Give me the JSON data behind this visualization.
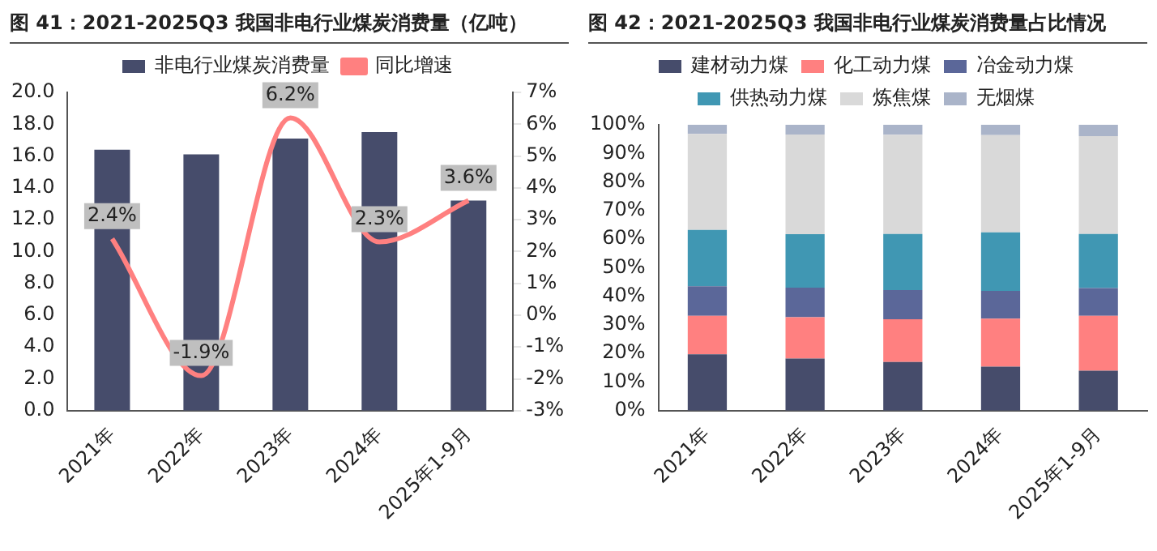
{
  "chart_data": [
    {
      "type": "bar",
      "title": "图 41：2021-2025Q3 我国非电行业煤炭消费量（亿吨）",
      "categories": [
        "2021年",
        "2022年",
        "2023年",
        "2024年",
        "2025年1-9月"
      ],
      "series": [
        {
          "name": "非电行业煤炭消费量",
          "type": "bar",
          "color": "#464c6b",
          "values": [
            16.4,
            16.1,
            17.1,
            17.5,
            13.2
          ]
        },
        {
          "name": "同比增速",
          "type": "line",
          "axis": "y2",
          "color": "#ff8080",
          "values": [
            2.4,
            -1.9,
            6.2,
            2.3,
            3.6
          ],
          "value_labels": [
            "2.4%",
            "-1.9%",
            "6.2%",
            "2.3%",
            "3.6%"
          ]
        }
      ],
      "ylim": [
        0,
        20
      ],
      "yticks": [
        {
          "value": 0,
          "label": "0.0"
        },
        {
          "value": 2,
          "label": "2.0"
        },
        {
          "value": 4,
          "label": "4.0"
        },
        {
          "value": 6,
          "label": "6.0"
        },
        {
          "value": 8,
          "label": "8.0"
        },
        {
          "value": 10,
          "label": "10.0"
        },
        {
          "value": 12,
          "label": "12.0"
        },
        {
          "value": 14,
          "label": "14.0"
        },
        {
          "value": 16,
          "label": "16.0"
        },
        {
          "value": 18,
          "label": "18.0"
        },
        {
          "value": 20,
          "label": "20.0"
        }
      ],
      "y2lim": [
        -3,
        7
      ],
      "y2ticks": [
        {
          "value": -3,
          "label": "-3%"
        },
        {
          "value": -2,
          "label": "-2%"
        },
        {
          "value": -1,
          "label": "-1%"
        },
        {
          "value": 0,
          "label": "0%"
        },
        {
          "value": 1,
          "label": "1%"
        },
        {
          "value": 2,
          "label": "2%"
        },
        {
          "value": 3,
          "label": "3%"
        },
        {
          "value": 4,
          "label": "4%"
        },
        {
          "value": 5,
          "label": "5%"
        },
        {
          "value": 6,
          "label": "6%"
        },
        {
          "value": 7,
          "label": "7%"
        }
      ],
      "legend": "top"
    },
    {
      "type": "bar",
      "title": "图 42：2021-2025Q3 我国非电行业煤炭消费量占比情况",
      "categories": [
        "2021年",
        "2022年",
        "2023年",
        "2024年",
        "2025年1-9月"
      ],
      "stacked": true,
      "series": [
        {
          "name": "建材动力煤",
          "color": "#464c6b",
          "values": [
            19.7,
            18.2,
            17.0,
            15.4,
            14.0
          ]
        },
        {
          "name": "化工动力煤",
          "color": "#ff8080",
          "values": [
            13.5,
            14.5,
            15.0,
            16.8,
            19.2
          ]
        },
        {
          "name": "冶金动力煤",
          "color": "#5b6799",
          "values": [
            10.3,
            10.3,
            10.2,
            9.7,
            9.7
          ]
        },
        {
          "name": "供热动力煤",
          "color": "#4097b3",
          "values": [
            19.7,
            18.7,
            19.6,
            20.5,
            18.9
          ]
        },
        {
          "name": "炼焦煤",
          "color": "#d9d9d9",
          "values": [
            33.6,
            34.9,
            34.7,
            34.0,
            34.2
          ]
        },
        {
          "name": "无烟煤",
          "color": "#aab4c9",
          "values": [
            3.2,
            3.4,
            3.5,
            3.6,
            4.0
          ]
        }
      ],
      "ylim": [
        0,
        100
      ],
      "yticks": [
        {
          "value": 0,
          "label": "0%"
        },
        {
          "value": 10,
          "label": "10%"
        },
        {
          "value": 20,
          "label": "20%"
        },
        {
          "value": 30,
          "label": "30%"
        },
        {
          "value": 40,
          "label": "40%"
        },
        {
          "value": 50,
          "label": "50%"
        },
        {
          "value": 60,
          "label": "60%"
        },
        {
          "value": 70,
          "label": "70%"
        },
        {
          "value": 80,
          "label": "80%"
        },
        {
          "value": 90,
          "label": "90%"
        },
        {
          "value": 100,
          "label": "100%"
        }
      ],
      "legend": "top"
    }
  ]
}
